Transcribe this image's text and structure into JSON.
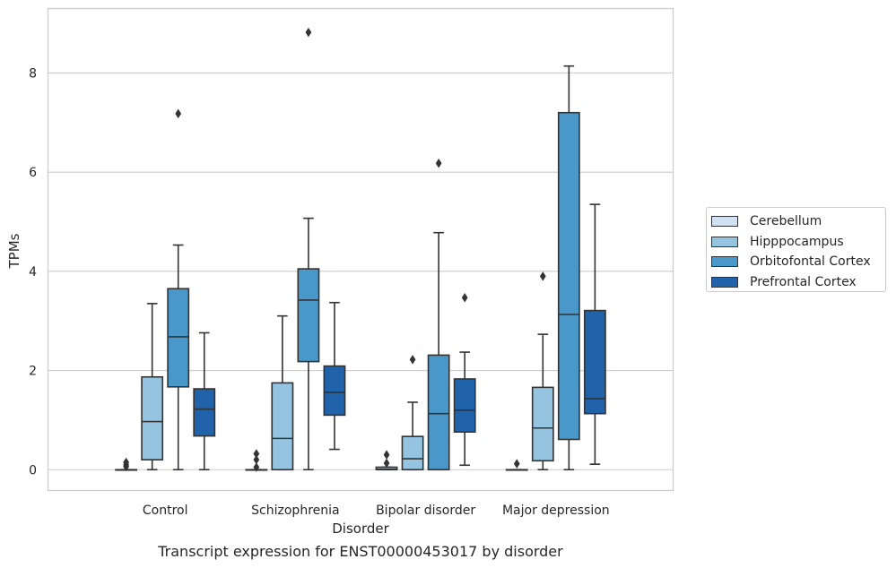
{
  "chart_data": {
    "type": "box",
    "categories": [
      "Control",
      "Schizophrenia",
      "Bipolar disorder",
      "Major depression"
    ],
    "xlabel": "Disorder",
    "ylabel": "TPMs",
    "caption": "Transcript expression for ENST00000453017 by disorder",
    "ylim": [
      -0.42,
      9.3
    ],
    "yticks": [
      0,
      2,
      4,
      6,
      8
    ],
    "grid": true,
    "legend_position": "right",
    "series": [
      {
        "name": "Cerebellum",
        "color": "#d0e1f2",
        "boxes": [
          {
            "whislo": 0,
            "q1": 0,
            "med": 0,
            "q3": 0,
            "whishi": 0,
            "fliers": [
              0.06,
              0.1,
              0.15
            ]
          },
          {
            "whislo": 0,
            "q1": 0,
            "med": 0,
            "q3": 0,
            "whishi": 0,
            "fliers": [
              0.05,
              0.2,
              0.32
            ]
          },
          {
            "whislo": 0,
            "q1": 0,
            "med": 0.01,
            "q3": 0.05,
            "whishi": 0.05,
            "fliers": [
              0.13,
              0.3
            ]
          },
          {
            "whislo": 0,
            "q1": 0,
            "med": 0,
            "q3": 0,
            "whishi": 0,
            "fliers": [
              0.12
            ]
          }
        ]
      },
      {
        "name": "Hipppocampus",
        "color": "#94c4df",
        "boxes": [
          {
            "whislo": 0,
            "q1": 0.2,
            "med": 0.97,
            "q3": 1.87,
            "whishi": 3.35,
            "fliers": []
          },
          {
            "whislo": 0,
            "q1": 0,
            "med": 0.63,
            "q3": 1.75,
            "whishi": 3.1,
            "fliers": []
          },
          {
            "whislo": 0,
            "q1": 0,
            "med": 0.22,
            "q3": 0.67,
            "whishi": 1.36,
            "fliers": [
              2.22
            ]
          },
          {
            "whislo": 0,
            "q1": 0.18,
            "med": 0.84,
            "q3": 1.66,
            "whishi": 2.73,
            "fliers": [
              3.9
            ]
          }
        ]
      },
      {
        "name": "Orbitofontal Cortex",
        "color": "#4a98c9",
        "boxes": [
          {
            "whislo": 0,
            "q1": 1.67,
            "med": 2.68,
            "q3": 3.65,
            "whishi": 4.53,
            "fliers": [
              7.18
            ]
          },
          {
            "whislo": 0,
            "q1": 2.18,
            "med": 3.42,
            "q3": 4.05,
            "whishi": 5.07,
            "fliers": [
              8.82
            ]
          },
          {
            "whislo": 0,
            "q1": 0,
            "med": 1.13,
            "q3": 2.31,
            "whishi": 4.78,
            "fliers": [
              6.18
            ]
          },
          {
            "whislo": 0,
            "q1": 0.61,
            "med": 3.13,
            "q3": 7.2,
            "whishi": 8.14,
            "fliers": []
          }
        ]
      },
      {
        "name": "Prefrontal Cortex",
        "color": "#2163aa",
        "boxes": [
          {
            "whislo": 0,
            "q1": 0.68,
            "med": 1.22,
            "q3": 1.63,
            "whishi": 2.76,
            "fliers": []
          },
          {
            "whislo": 0.41,
            "q1": 1.1,
            "med": 1.56,
            "q3": 2.09,
            "whishi": 3.37,
            "fliers": []
          },
          {
            "whislo": 0.09,
            "q1": 0.76,
            "med": 1.2,
            "q3": 1.83,
            "whishi": 2.37,
            "fliers": [
              3.47
            ]
          },
          {
            "whislo": 0.11,
            "q1": 1.13,
            "med": 1.43,
            "q3": 3.21,
            "whishi": 5.35,
            "fliers": []
          }
        ]
      }
    ]
  }
}
